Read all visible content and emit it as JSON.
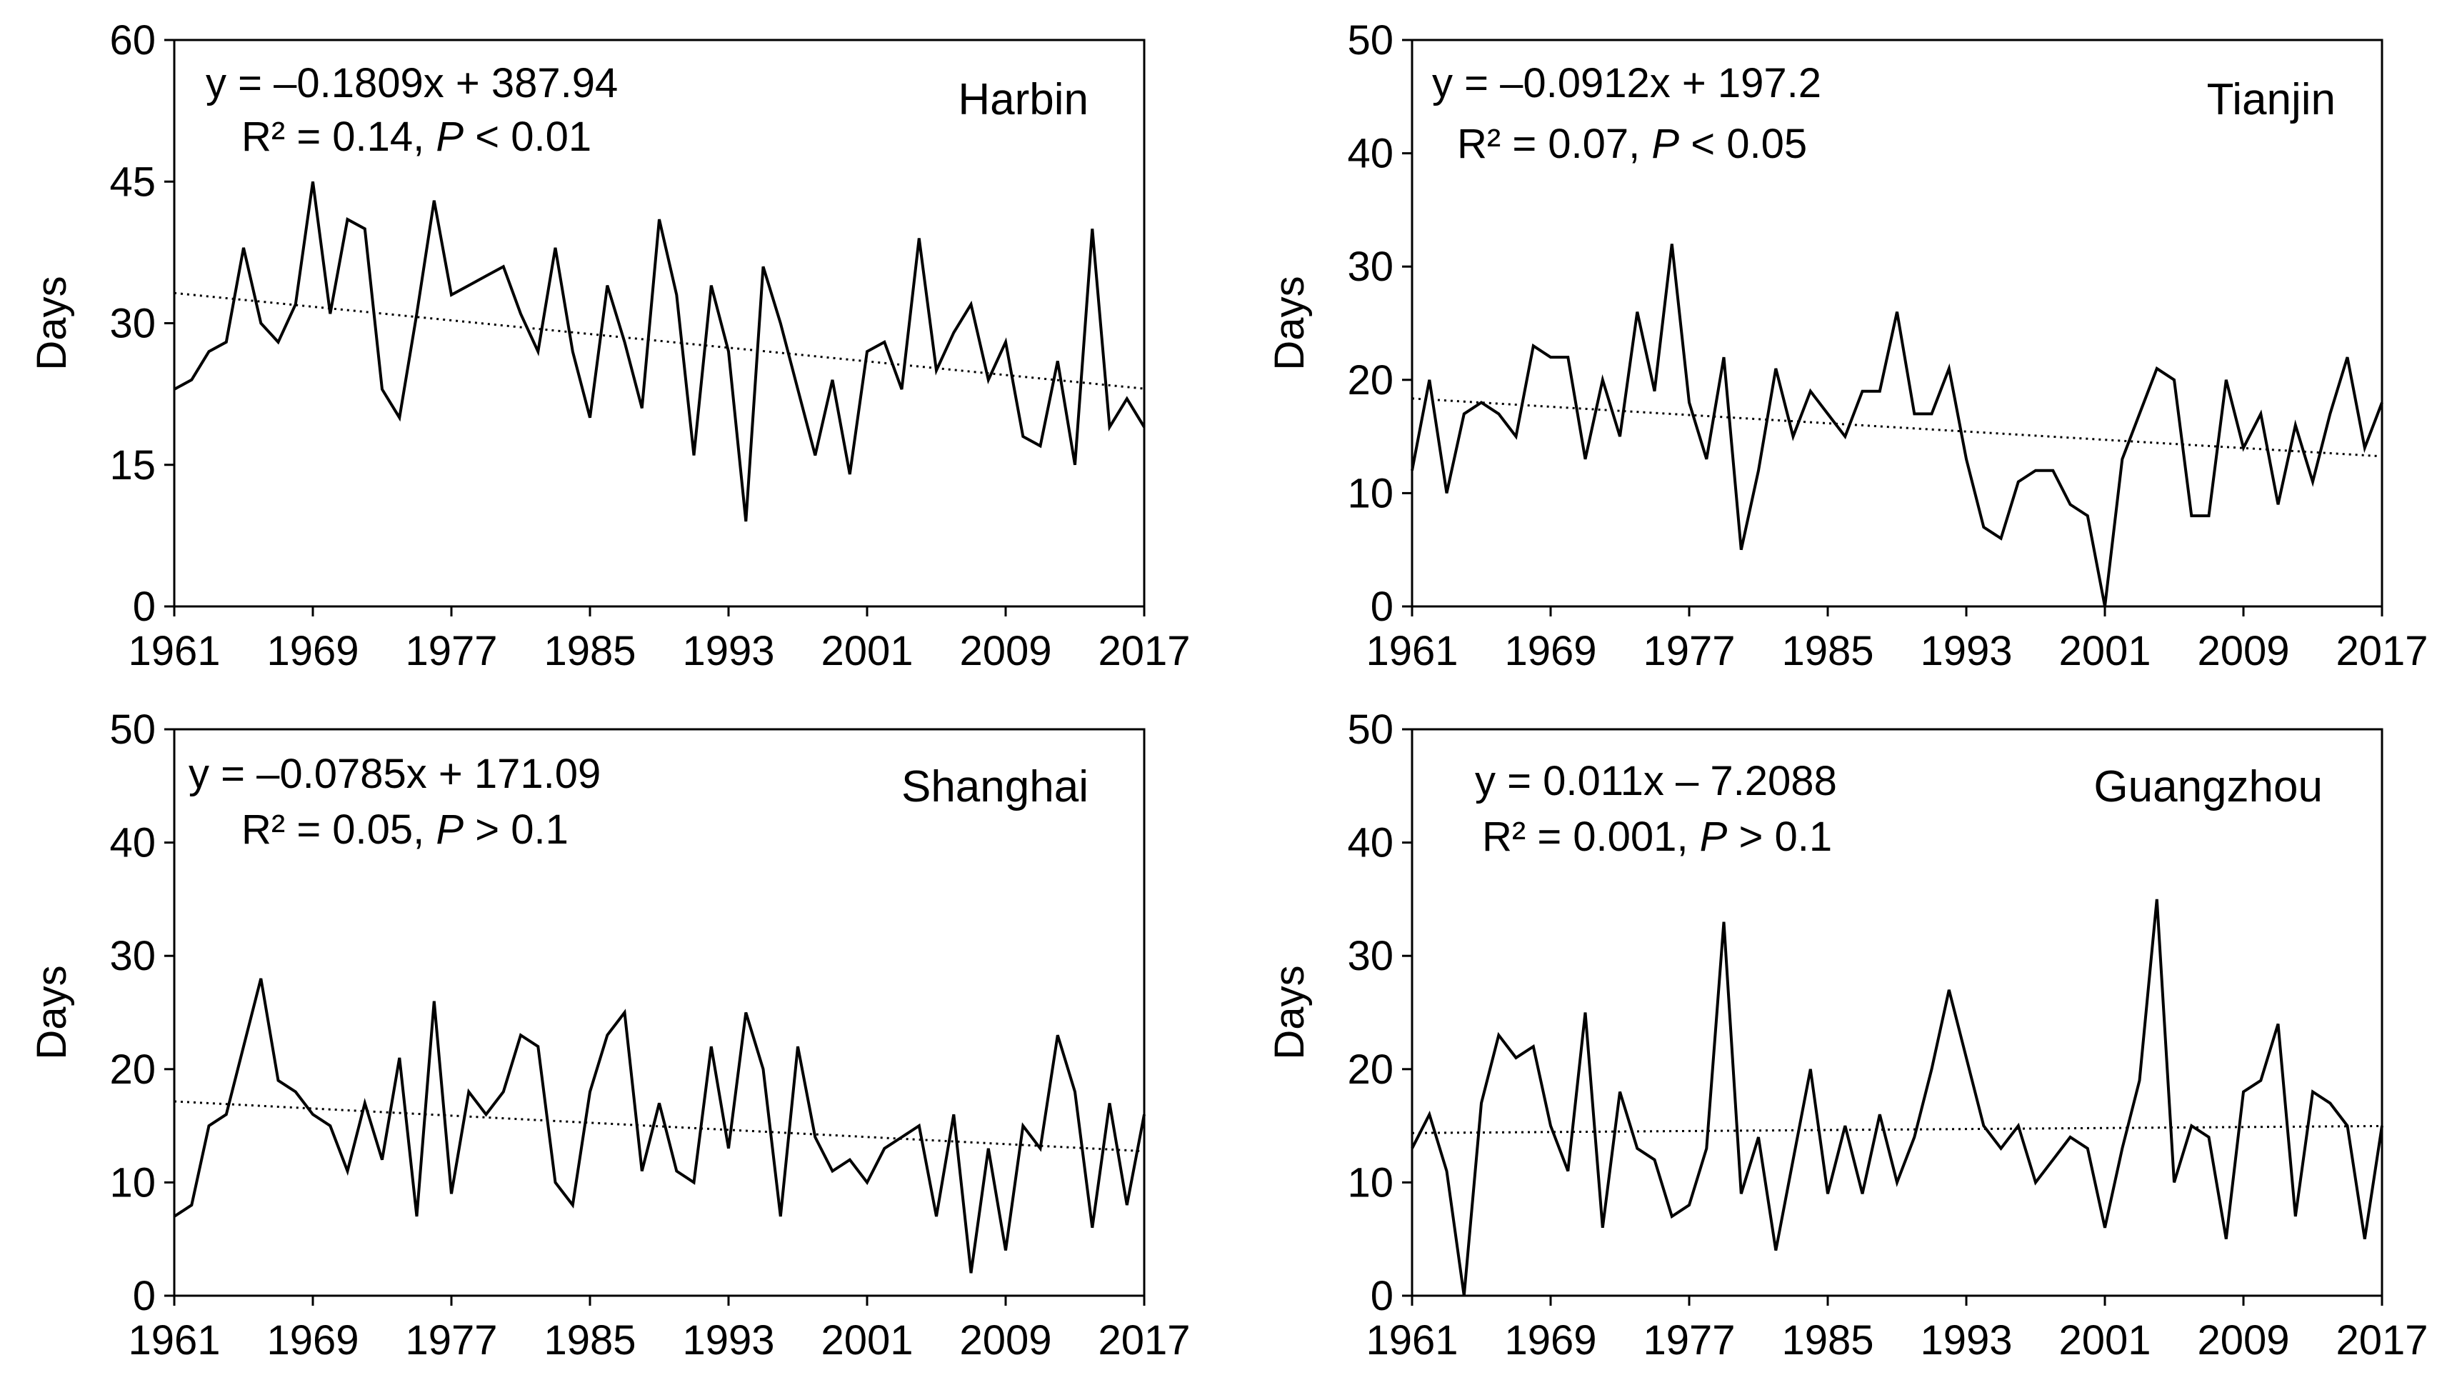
{
  "line_color": "#000000",
  "trend_color": "#000000",
  "chart_data": [
    {
      "type": "line",
      "title": "Harbin",
      "xlabel": "",
      "ylabel": "Days",
      "xlim": [
        1961,
        2017
      ],
      "ylim": [
        0,
        60
      ],
      "xticks": [
        1961,
        1969,
        1977,
        1985,
        1993,
        2001,
        2009,
        2017
      ],
      "yticks": [
        0,
        15,
        30,
        45,
        60
      ],
      "equation": "y = –0.1809x + 387.94",
      "r2_prefix": "R² = 0.14, ",
      "p_symbol": "P",
      "p_suffix": " < 0.01",
      "trend": {
        "slope": -0.1809,
        "intercept": 387.94
      },
      "x": [
        1961,
        1962,
        1963,
        1964,
        1965,
        1966,
        1967,
        1968,
        1969,
        1970,
        1971,
        1972,
        1973,
        1974,
        1975,
        1976,
        1977,
        1978,
        1979,
        1980,
        1981,
        1982,
        1983,
        1984,
        1985,
        1986,
        1987,
        1988,
        1989,
        1990,
        1991,
        1992,
        1993,
        1994,
        1995,
        1996,
        1997,
        1998,
        1999,
        2000,
        2001,
        2002,
        2003,
        2004,
        2005,
        2006,
        2007,
        2008,
        2009,
        2010,
        2011,
        2012,
        2013,
        2014,
        2015,
        2016,
        2017
      ],
      "values": [
        23,
        24,
        27,
        28,
        38,
        30,
        28,
        32,
        45,
        31,
        41,
        40,
        23,
        20,
        31,
        43,
        33,
        34,
        35,
        36,
        31,
        27,
        38,
        27,
        20,
        34,
        28,
        21,
        41,
        33,
        16,
        34,
        27,
        9,
        36,
        30,
        23,
        16,
        24,
        14,
        27,
        28,
        23,
        39,
        25,
        29,
        32,
        24,
        28,
        18,
        17,
        26,
        15,
        40,
        19,
        22,
        19
      ]
    },
    {
      "type": "line",
      "title": "Tianjin",
      "xlabel": "",
      "ylabel": "Days",
      "xlim": [
        1961,
        2017
      ],
      "ylim": [
        0,
        50
      ],
      "xticks": [
        1961,
        1969,
        1977,
        1985,
        1993,
        2001,
        2009,
        2017
      ],
      "yticks": [
        0,
        10,
        20,
        30,
        40,
        50
      ],
      "equation": "y = –0.0912x + 197.2",
      "r2_prefix": "R² = 0.07, ",
      "p_symbol": "P",
      "p_suffix": " < 0.05",
      "trend": {
        "slope": -0.0912,
        "intercept": 197.2
      },
      "x": [
        1961,
        1962,
        1963,
        1964,
        1965,
        1966,
        1967,
        1968,
        1969,
        1970,
        1971,
        1972,
        1973,
        1974,
        1975,
        1976,
        1977,
        1978,
        1979,
        1980,
        1981,
        1982,
        1983,
        1984,
        1985,
        1986,
        1987,
        1988,
        1989,
        1990,
        1991,
        1992,
        1993,
        1994,
        1995,
        1996,
        1997,
        1998,
        1999,
        2000,
        2001,
        2002,
        2003,
        2004,
        2005,
        2006,
        2007,
        2008,
        2009,
        2010,
        2011,
        2012,
        2013,
        2014,
        2015,
        2016,
        2017
      ],
      "values": [
        12,
        20,
        10,
        17,
        18,
        17,
        15,
        23,
        22,
        22,
        13,
        20,
        15,
        26,
        19,
        32,
        18,
        13,
        22,
        5,
        12,
        21,
        15,
        19,
        17,
        15,
        19,
        19,
        26,
        17,
        17,
        21,
        13,
        7,
        6,
        11,
        12,
        12,
        9,
        8,
        0,
        13,
        17,
        21,
        20,
        8,
        8,
        20,
        14,
        17,
        9,
        16,
        11,
        17,
        22,
        14,
        18
      ]
    },
    {
      "type": "line",
      "title": "Shanghai",
      "xlabel": "",
      "ylabel": "Days",
      "xlim": [
        1961,
        2017
      ],
      "ylim": [
        0,
        50
      ],
      "xticks": [
        1961,
        1969,
        1977,
        1985,
        1993,
        2001,
        2009,
        2017
      ],
      "yticks": [
        0,
        10,
        20,
        30,
        40,
        50
      ],
      "equation": "y = –0.0785x + 171.09",
      "r2_prefix": "R² = 0.05, ",
      "p_symbol": "P",
      "p_suffix": " > 0.1",
      "trend": {
        "slope": -0.0785,
        "intercept": 171.09
      },
      "x": [
        1961,
        1962,
        1963,
        1964,
        1965,
        1966,
        1967,
        1968,
        1969,
        1970,
        1971,
        1972,
        1973,
        1974,
        1975,
        1976,
        1977,
        1978,
        1979,
        1980,
        1981,
        1982,
        1983,
        1984,
        1985,
        1986,
        1987,
        1988,
        1989,
        1990,
        1991,
        1992,
        1993,
        1994,
        1995,
        1996,
        1997,
        1998,
        1999,
        2000,
        2001,
        2002,
        2003,
        2004,
        2005,
        2006,
        2007,
        2008,
        2009,
        2010,
        2011,
        2012,
        2013,
        2014,
        2015,
        2016,
        2017
      ],
      "values": [
        7,
        8,
        15,
        16,
        22,
        28,
        19,
        18,
        16,
        15,
        11,
        17,
        12,
        21,
        7,
        26,
        9,
        18,
        16,
        18,
        23,
        22,
        10,
        8,
        18,
        23,
        25,
        11,
        17,
        11,
        10,
        22,
        13,
        25,
        20,
        7,
        22,
        14,
        11,
        12,
        10,
        13,
        14,
        15,
        7,
        16,
        2,
        13,
        4,
        15,
        13,
        23,
        18,
        6,
        17,
        8,
        16
      ]
    },
    {
      "type": "line",
      "title": "Guangzhou",
      "xlabel": "",
      "ylabel": "Days",
      "xlim": [
        1961,
        2017
      ],
      "ylim": [
        0,
        50
      ],
      "xticks": [
        1961,
        1969,
        1977,
        1985,
        1993,
        2001,
        2009,
        2017
      ],
      "yticks": [
        0,
        10,
        20,
        30,
        40,
        50
      ],
      "equation": "y = 0.011x – 7.2088",
      "r2_prefix": "R² = 0.001, ",
      "p_symbol": "P",
      "p_suffix": " > 0.1",
      "trend": {
        "slope": 0.011,
        "intercept": -7.2088
      },
      "x": [
        1961,
        1962,
        1963,
        1964,
        1965,
        1966,
        1967,
        1968,
        1969,
        1970,
        1971,
        1972,
        1973,
        1974,
        1975,
        1976,
        1977,
        1978,
        1979,
        1980,
        1981,
        1982,
        1983,
        1984,
        1985,
        1986,
        1987,
        1988,
        1989,
        1990,
        1991,
        1992,
        1993,
        1994,
        1995,
        1996,
        1997,
        1998,
        1999,
        2000,
        2001,
        2002,
        2003,
        2004,
        2005,
        2006,
        2007,
        2008,
        2009,
        2010,
        2011,
        2012,
        2013,
        2014,
        2015,
        2016,
        2017
      ],
      "values": [
        13,
        16,
        11,
        0,
        17,
        23,
        21,
        22,
        15,
        11,
        25,
        6,
        18,
        13,
        12,
        7,
        8,
        13,
        33,
        9,
        14,
        4,
        12,
        20,
        9,
        15,
        9,
        16,
        10,
        14,
        20,
        27,
        21,
        15,
        13,
        15,
        10,
        12,
        14,
        13,
        6,
        13,
        19,
        35,
        10,
        15,
        14,
        5,
        18,
        19,
        24,
        7,
        18,
        17,
        15,
        5,
        15
      ]
    }
  ]
}
